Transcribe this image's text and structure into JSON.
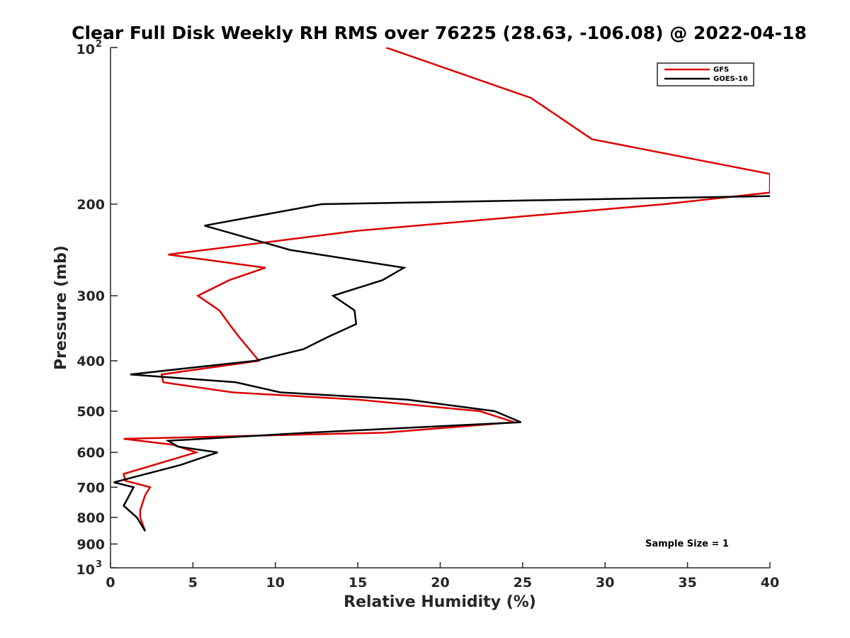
{
  "chart_data": {
    "type": "line",
    "title": "Clear Full Disk Weekly RH RMS over 76225 (28.63, -106.08) @ 2022-04-18",
    "xlabel": "Relative Humidity (%)",
    "ylabel": "Pressure (mb)",
    "xlim": [
      0,
      40
    ],
    "ylim": [
      100,
      1000
    ],
    "y_scale": "log",
    "y_reversed": true,
    "x_ticks": [
      "0",
      "5",
      "10",
      "15",
      "20",
      "25",
      "30",
      "35",
      "40"
    ],
    "y_ticks": [
      {
        "value": 100,
        "base": "10",
        "exp": "2"
      },
      {
        "value": 200,
        "label": "200"
      },
      {
        "value": 300,
        "label": "300"
      },
      {
        "value": 400,
        "label": "400"
      },
      {
        "value": 500,
        "label": "500"
      },
      {
        "value": 600,
        "label": "600"
      },
      {
        "value": 700,
        "label": "700"
      },
      {
        "value": 800,
        "label": "800"
      },
      {
        "value": 900,
        "label": "900"
      },
      {
        "value": 1000,
        "base": "10",
        "exp": "3"
      }
    ],
    "grid": false,
    "legend_position": "top-right",
    "annotation": "Sample Size = 1",
    "series": [
      {
        "name": "GFS",
        "color": "#dd0000",
        "points": [
          [
            16.7,
            100
          ],
          [
            25.5,
            125
          ],
          [
            29.2,
            150
          ],
          [
            40.0,
            175
          ],
          [
            40.0,
            190
          ],
          [
            33.6,
            200
          ],
          [
            15.0,
            225
          ],
          [
            3.5,
            250
          ],
          [
            9.4,
            265
          ],
          [
            7.2,
            280
          ],
          [
            5.3,
            300
          ],
          [
            6.6,
            320
          ],
          [
            7.2,
            340
          ],
          [
            7.8,
            360
          ],
          [
            9.0,
            400
          ],
          [
            3.1,
            425
          ],
          [
            3.2,
            440
          ],
          [
            7.4,
            460
          ],
          [
            15.0,
            475
          ],
          [
            22.4,
            500
          ],
          [
            24.5,
            525
          ],
          [
            16.6,
            550
          ],
          [
            0.8,
            565
          ],
          [
            3.8,
            580
          ],
          [
            5.2,
            600
          ],
          [
            0.8,
            660
          ],
          [
            0.9,
            680
          ],
          [
            2.4,
            700
          ],
          [
            2.1,
            725
          ],
          [
            1.8,
            775
          ],
          [
            1.8,
            800
          ],
          [
            2.1,
            850
          ]
        ]
      },
      {
        "name": "GOES-16",
        "color": "#000000",
        "points": [
          [
            40.0,
            193
          ],
          [
            12.8,
            200
          ],
          [
            5.7,
            220
          ],
          [
            10.9,
            245
          ],
          [
            17.8,
            265
          ],
          [
            16.5,
            280
          ],
          [
            13.5,
            300
          ],
          [
            14.8,
            320
          ],
          [
            14.9,
            340
          ],
          [
            13.2,
            360
          ],
          [
            11.7,
            380
          ],
          [
            8.8,
            400
          ],
          [
            1.2,
            425
          ],
          [
            7.6,
            440
          ],
          [
            10.3,
            460
          ],
          [
            18.0,
            475
          ],
          [
            23.3,
            500
          ],
          [
            24.9,
            525
          ],
          [
            12.0,
            550
          ],
          [
            3.5,
            570
          ],
          [
            4.1,
            585
          ],
          [
            6.5,
            600
          ],
          [
            4.2,
            635
          ],
          [
            0.2,
            685
          ],
          [
            1.4,
            700
          ],
          [
            0.8,
            760
          ],
          [
            1.6,
            800
          ],
          [
            2.1,
            850
          ]
        ]
      }
    ]
  }
}
